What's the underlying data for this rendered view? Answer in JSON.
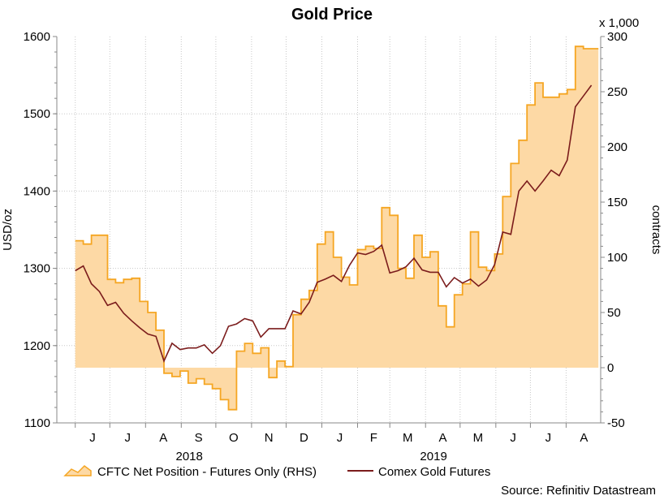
{
  "chart_data": {
    "type": "area",
    "title": "Gold Price",
    "ylabel": "USD/oz",
    "y2label": "contracts",
    "y2multiplier": "x 1,000",
    "ylim": [
      1100,
      1600
    ],
    "y2lim": [
      -50,
      300
    ],
    "yticks": [
      "1100",
      "1200",
      "1300",
      "1400",
      "1500",
      "1600"
    ],
    "y2ticks": [
      "-50",
      "0",
      "50",
      "100",
      "150",
      "200",
      "250",
      "300"
    ],
    "month_labels": [
      "J",
      "J",
      "A",
      "S",
      "O",
      "N",
      "D",
      "J",
      "F",
      "M",
      "A",
      "M",
      "J",
      "J",
      "A"
    ],
    "year_labels": [
      "2018",
      "2019"
    ],
    "grid": true,
    "legend_position": "bottom",
    "source": "Source: Refinitiv Datastream",
    "x_start": "2018-06-01",
    "x_end": "2019-08-23",
    "series": [
      {
        "name": "CFTC Net Position - Futures Only (RHS)",
        "type": "area",
        "axis": "right",
        "color": "#F5A623",
        "fill": "#FDD9A5",
        "points": [
          [
            "2018-06-01",
            115
          ],
          [
            "2018-06-08",
            112
          ],
          [
            "2018-06-15",
            120
          ],
          [
            "2018-06-22",
            120
          ],
          [
            "2018-06-29",
            80
          ],
          [
            "2018-07-06",
            77
          ],
          [
            "2018-07-13",
            80
          ],
          [
            "2018-07-20",
            81
          ],
          [
            "2018-07-27",
            60
          ],
          [
            "2018-08-03",
            50
          ],
          [
            "2018-08-10",
            34
          ],
          [
            "2018-08-17",
            -5
          ],
          [
            "2018-08-24",
            -8
          ],
          [
            "2018-08-31",
            -3
          ],
          [
            "2018-09-07",
            -14
          ],
          [
            "2018-09-14",
            -10
          ],
          [
            "2018-09-21",
            -15
          ],
          [
            "2018-09-28",
            -19
          ],
          [
            "2018-10-05",
            -29
          ],
          [
            "2018-10-12",
            -38
          ],
          [
            "2018-10-19",
            15
          ],
          [
            "2018-10-26",
            22
          ],
          [
            "2018-11-02",
            13
          ],
          [
            "2018-11-09",
            18
          ],
          [
            "2018-11-16",
            -9
          ],
          [
            "2018-11-23",
            6
          ],
          [
            "2018-11-30",
            1
          ],
          [
            "2018-12-07",
            48
          ],
          [
            "2018-12-14",
            62
          ],
          [
            "2018-12-21",
            70
          ],
          [
            "2018-12-28",
            112
          ],
          [
            "2019-01-04",
            123
          ],
          [
            "2019-01-11",
            100
          ],
          [
            "2019-01-18",
            82
          ],
          [
            "2019-01-25",
            75
          ],
          [
            "2019-02-01",
            107
          ],
          [
            "2019-02-08",
            110
          ],
          [
            "2019-02-15",
            108
          ],
          [
            "2019-02-22",
            145
          ],
          [
            "2019-03-01",
            138
          ],
          [
            "2019-03-08",
            90
          ],
          [
            "2019-03-15",
            81
          ],
          [
            "2019-03-22",
            120
          ],
          [
            "2019-03-29",
            100
          ],
          [
            "2019-04-05",
            105
          ],
          [
            "2019-04-12",
            56
          ],
          [
            "2019-04-19",
            37
          ],
          [
            "2019-04-26",
            66
          ],
          [
            "2019-05-03",
            76
          ],
          [
            "2019-05-10",
            123
          ],
          [
            "2019-05-17",
            91
          ],
          [
            "2019-05-24",
            88
          ],
          [
            "2019-05-31",
            103
          ],
          [
            "2019-06-07",
            155
          ],
          [
            "2019-06-14",
            185
          ],
          [
            "2019-06-21",
            206
          ],
          [
            "2019-06-28",
            238
          ],
          [
            "2019-07-05",
            258
          ],
          [
            "2019-07-12",
            245
          ],
          [
            "2019-07-19",
            245
          ],
          [
            "2019-07-26",
            248
          ],
          [
            "2019-08-02",
            252
          ],
          [
            "2019-08-09",
            291
          ],
          [
            "2019-08-16",
            289
          ],
          [
            "2019-08-23",
            289
          ]
        ]
      },
      {
        "name": "Comex Gold Futures",
        "type": "line",
        "axis": "left",
        "color": "#7B1C1C",
        "points": [
          [
            "2018-06-01",
            1297
          ],
          [
            "2018-06-08",
            1303
          ],
          [
            "2018-06-15",
            1280
          ],
          [
            "2018-06-22",
            1270
          ],
          [
            "2018-06-29",
            1252
          ],
          [
            "2018-07-06",
            1256
          ],
          [
            "2018-07-13",
            1242
          ],
          [
            "2018-07-20",
            1232
          ],
          [
            "2018-07-27",
            1223
          ],
          [
            "2018-08-03",
            1215
          ],
          [
            "2018-08-10",
            1212
          ],
          [
            "2018-08-17",
            1180
          ],
          [
            "2018-08-24",
            1203
          ],
          [
            "2018-08-31",
            1195
          ],
          [
            "2018-09-07",
            1197
          ],
          [
            "2018-09-14",
            1197
          ],
          [
            "2018-09-21",
            1201
          ],
          [
            "2018-09-28",
            1190
          ],
          [
            "2018-10-05",
            1200
          ],
          [
            "2018-10-12",
            1225
          ],
          [
            "2018-10-19",
            1228
          ],
          [
            "2018-10-26",
            1235
          ],
          [
            "2018-11-02",
            1232
          ],
          [
            "2018-11-09",
            1211
          ],
          [
            "2018-11-16",
            1222
          ],
          [
            "2018-11-23",
            1222
          ],
          [
            "2018-11-30",
            1222
          ],
          [
            "2018-12-07",
            1245
          ],
          [
            "2018-12-14",
            1241
          ],
          [
            "2018-12-21",
            1256
          ],
          [
            "2018-12-28",
            1282
          ],
          [
            "2019-01-04",
            1286
          ],
          [
            "2019-01-11",
            1291
          ],
          [
            "2019-01-18",
            1283
          ],
          [
            "2019-01-25",
            1304
          ],
          [
            "2019-02-01",
            1320
          ],
          [
            "2019-02-08",
            1318
          ],
          [
            "2019-02-15",
            1322
          ],
          [
            "2019-02-22",
            1330
          ],
          [
            "2019-03-01",
            1294
          ],
          [
            "2019-03-08",
            1297
          ],
          [
            "2019-03-15",
            1302
          ],
          [
            "2019-03-22",
            1313
          ],
          [
            "2019-03-29",
            1298
          ],
          [
            "2019-04-05",
            1295
          ],
          [
            "2019-04-12",
            1295
          ],
          [
            "2019-04-19",
            1276
          ],
          [
            "2019-04-26",
            1288
          ],
          [
            "2019-05-03",
            1281
          ],
          [
            "2019-05-10",
            1286
          ],
          [
            "2019-05-17",
            1277
          ],
          [
            "2019-05-24",
            1285
          ],
          [
            "2019-05-31",
            1305
          ],
          [
            "2019-06-07",
            1347
          ],
          [
            "2019-06-14",
            1344
          ],
          [
            "2019-06-21",
            1400
          ],
          [
            "2019-06-28",
            1413
          ],
          [
            "2019-07-05",
            1400
          ],
          [
            "2019-07-12",
            1413
          ],
          [
            "2019-07-19",
            1427
          ],
          [
            "2019-07-26",
            1420
          ],
          [
            "2019-08-02",
            1440
          ],
          [
            "2019-08-09",
            1509
          ],
          [
            "2019-08-16",
            1523
          ],
          [
            "2019-08-23",
            1537
          ]
        ]
      }
    ]
  }
}
